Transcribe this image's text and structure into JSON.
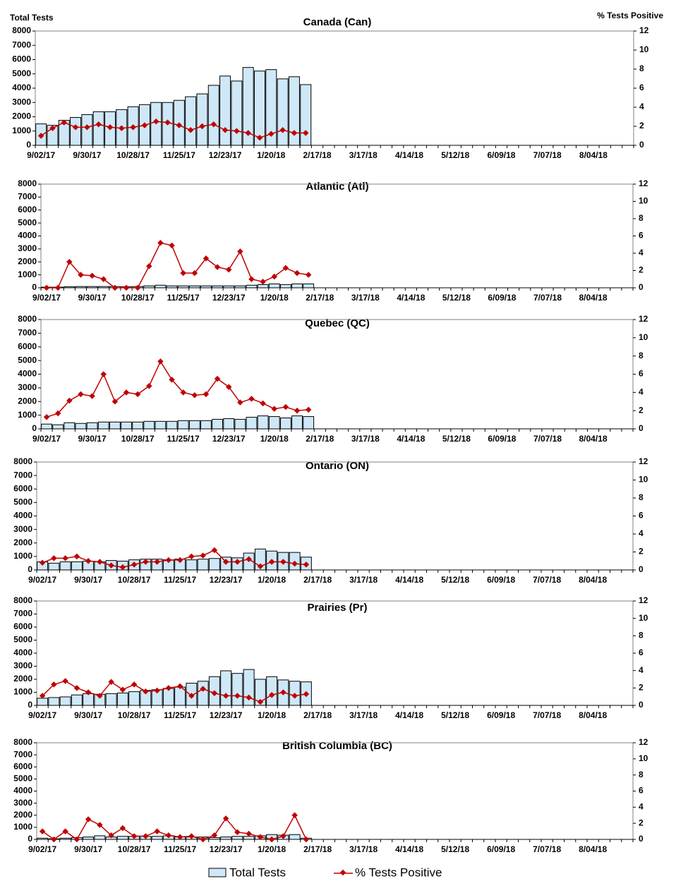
{
  "chart_data": [
    {
      "type": "bar_line",
      "title": "Canada (Can)",
      "y_label": "Total Tests",
      "y2_label": "% Tests Positive",
      "categories": [
        "9/02/17",
        null,
        null,
        null,
        "9/30/17",
        null,
        null,
        null,
        "10/28/17",
        null,
        null,
        null,
        "11/25/17",
        null,
        null,
        null,
        "12/23/17",
        null,
        null,
        null,
        "1/20/18",
        null,
        null,
        null,
        "2/17/18",
        null,
        null,
        null,
        "3/17/18",
        null,
        null,
        null,
        "4/14/18",
        null,
        null,
        null,
        "5/12/18",
        null,
        null,
        null,
        "6/09/18",
        null,
        null,
        null,
        "7/07/18",
        null,
        null,
        null,
        "8/04/18",
        null,
        null,
        null
      ],
      "series": [
        {
          "name": "Total Tests",
          "color": "#cfe8f8",
          "values": [
            1500,
            1400,
            1750,
            1950,
            2150,
            2350,
            2350,
            2500,
            2700,
            2850,
            3000,
            3000,
            3150,
            3400,
            3600,
            4200,
            4850,
            4500,
            5450,
            5200,
            5300,
            4650,
            4800,
            4250,
            null,
            null,
            null,
            null,
            null,
            null,
            null,
            null,
            null,
            null,
            null,
            null,
            null,
            null,
            null,
            null,
            null,
            null,
            null,
            null,
            null,
            null,
            null,
            null,
            null,
            null,
            null,
            null
          ]
        },
        {
          "name": "% Tests Positive",
          "color": "#c00000",
          "axis": "y2",
          "values": [
            1.0,
            1.8,
            2.4,
            1.9,
            1.9,
            2.2,
            1.9,
            1.8,
            1.9,
            2.1,
            2.5,
            2.4,
            2.1,
            1.6,
            2.0,
            2.2,
            1.6,
            1.5,
            1.3,
            0.8,
            1.2,
            1.6,
            1.3,
            1.3,
            null,
            null,
            null,
            null,
            null,
            null,
            null,
            null,
            null,
            null,
            null,
            null,
            null,
            null,
            null,
            null,
            null,
            null,
            null,
            null,
            null,
            null,
            null,
            null,
            null,
            null,
            null,
            null
          ]
        }
      ],
      "ylim": [
        0,
        8000
      ],
      "yticks": [
        0,
        1000,
        2000,
        3000,
        4000,
        5000,
        6000,
        7000,
        8000
      ],
      "y2lim": [
        0,
        12
      ],
      "y2ticks": [
        0,
        2,
        4,
        6,
        8,
        10,
        12
      ]
    },
    {
      "type": "bar_line",
      "title": "Atlantic (Atl)",
      "categories": [
        "9/02/17",
        null,
        null,
        null,
        "9/30/17",
        null,
        null,
        null,
        "10/28/17",
        null,
        null,
        null,
        "11/25/17",
        null,
        null,
        null,
        "12/23/17",
        null,
        null,
        null,
        "1/20/18",
        null,
        null,
        null,
        "2/17/18",
        null,
        null,
        null,
        "3/17/18",
        null,
        null,
        null,
        "4/14/18",
        null,
        null,
        null,
        "5/12/18",
        null,
        null,
        null,
        "6/09/18",
        null,
        null,
        null,
        "7/07/18",
        null,
        null,
        null,
        "8/04/18",
        null,
        null,
        null
      ],
      "series": [
        {
          "color": "#cfe8f8",
          "values": [
            50,
            50,
            80,
            100,
            100,
            100,
            100,
            80,
            100,
            150,
            200,
            150,
            150,
            150,
            150,
            150,
            150,
            150,
            200,
            250,
            300,
            250,
            300,
            300,
            null,
            null,
            null,
            null,
            null,
            null,
            null,
            null,
            null,
            null,
            null,
            null,
            null,
            null,
            null,
            null,
            null,
            null,
            null,
            null,
            null,
            null,
            null,
            null,
            null,
            null,
            null,
            null
          ]
        },
        {
          "color": "#c00000",
          "axis": "y2",
          "values": [
            0,
            0,
            3.0,
            1.5,
            1.4,
            1.0,
            0,
            0,
            0,
            2.5,
            5.2,
            4.9,
            1.7,
            1.7,
            3.4,
            2.4,
            2.1,
            4.2,
            1.0,
            0.7,
            1.3,
            2.3,
            1.7,
            1.5,
            null,
            null,
            null,
            null,
            null,
            null,
            null,
            null,
            null,
            null,
            null,
            null,
            null,
            null,
            null,
            null,
            null,
            null,
            null,
            null,
            null,
            null,
            null,
            null,
            null,
            null,
            null,
            null
          ]
        }
      ],
      "ylim": [
        0,
        8000
      ],
      "yticks": [
        0,
        1000,
        2000,
        3000,
        4000,
        5000,
        6000,
        7000,
        8000
      ],
      "y2lim": [
        0,
        12
      ],
      "y2ticks": [
        0,
        2,
        4,
        6,
        8,
        10,
        12
      ]
    },
    {
      "type": "bar_line",
      "title": "Quebec (QC)",
      "categories": [
        "9/02/17",
        null,
        null,
        null,
        "9/30/17",
        null,
        null,
        null,
        "10/28/17",
        null,
        null,
        null,
        "11/25/17",
        null,
        null,
        null,
        "12/23/17",
        null,
        null,
        null,
        "1/20/18",
        null,
        null,
        null,
        "2/17/18",
        null,
        null,
        null,
        "3/17/18",
        null,
        null,
        null,
        "4/14/18",
        null,
        null,
        null,
        "5/12/18",
        null,
        null,
        null,
        "6/09/18",
        null,
        null,
        null,
        "7/07/18",
        null,
        null,
        null,
        "8/04/18",
        null,
        null,
        null
      ],
      "series": [
        {
          "color": "#cfe8f8",
          "values": [
            350,
            300,
            450,
            400,
            450,
            500,
            500,
            500,
            500,
            550,
            550,
            550,
            600,
            600,
            600,
            700,
            750,
            700,
            850,
            950,
            900,
            800,
            950,
            900,
            null,
            null,
            null,
            null,
            null,
            null,
            null,
            null,
            null,
            null,
            null,
            null,
            null,
            null,
            null,
            null,
            null,
            null,
            null,
            null,
            null,
            null,
            null,
            null,
            null,
            null,
            null,
            null
          ]
        },
        {
          "color": "#c00000",
          "axis": "y2",
          "values": [
            1.3,
            1.7,
            3.1,
            3.8,
            3.6,
            6.0,
            3.0,
            4.0,
            3.8,
            4.7,
            7.4,
            5.4,
            4.0,
            3.7,
            3.8,
            5.5,
            4.6,
            2.9,
            3.3,
            2.8,
            2.2,
            2.4,
            2.0,
            2.1,
            null,
            null,
            null,
            null,
            null,
            null,
            null,
            null,
            null,
            null,
            null,
            null,
            null,
            null,
            null,
            null,
            null,
            null,
            null,
            null,
            null,
            null,
            null,
            null,
            null,
            null,
            null,
            null
          ]
        }
      ],
      "ylim": [
        0,
        8000
      ],
      "yticks": [
        0,
        1000,
        2000,
        3000,
        4000,
        5000,
        6000,
        7000,
        8000
      ],
      "y2lim": [
        0,
        12
      ],
      "y2ticks": [
        0,
        2,
        4,
        6,
        8,
        10,
        12
      ]
    },
    {
      "type": "bar_line",
      "title": "Ontario (ON)",
      "categories": [
        "9/02/17",
        null,
        null,
        null,
        "9/30/17",
        null,
        null,
        null,
        "10/28/17",
        null,
        null,
        null,
        "11/25/17",
        null,
        null,
        null,
        "12/23/17",
        null,
        null,
        null,
        "1/20/18",
        null,
        null,
        null,
        "2/17/18",
        null,
        null,
        null,
        "3/17/18",
        null,
        null,
        null,
        "4/14/18",
        null,
        null,
        null,
        "5/12/18",
        null,
        null,
        null,
        "6/09/18",
        null,
        null,
        null,
        "7/07/18",
        null,
        null,
        null,
        "8/04/18",
        null,
        null,
        null
      ],
      "series": [
        {
          "color": "#cfe8f8",
          "values": [
            600,
            500,
            600,
            600,
            650,
            600,
            700,
            650,
            750,
            800,
            800,
            750,
            800,
            750,
            800,
            850,
            950,
            900,
            1250,
            1550,
            1400,
            1300,
            1300,
            950,
            null,
            null,
            null,
            null,
            null,
            null,
            null,
            null,
            null,
            null,
            null,
            null,
            null,
            null,
            null,
            null,
            null,
            null,
            null,
            null,
            null,
            null,
            null,
            null,
            null,
            null,
            null,
            null
          ]
        },
        {
          "color": "#c00000",
          "axis": "y2",
          "values": [
            0.8,
            1.3,
            1.3,
            1.5,
            1.0,
            0.9,
            0.5,
            0.3,
            0.6,
            0.9,
            0.9,
            1.1,
            1.1,
            1.5,
            1.6,
            2.2,
            0.9,
            0.9,
            1.2,
            0.4,
            0.9,
            0.9,
            0.7,
            0.6,
            null,
            null,
            null,
            null,
            null,
            null,
            null,
            null,
            null,
            null,
            null,
            null,
            null,
            null,
            null,
            null,
            null,
            null,
            null,
            null,
            null,
            null,
            null,
            null,
            null,
            null,
            null,
            null
          ]
        }
      ],
      "ylim": [
        0,
        8000
      ],
      "yticks": [
        0,
        1000,
        2000,
        3000,
        4000,
        5000,
        6000,
        7000,
        8000
      ],
      "y2lim": [
        0,
        12
      ],
      "y2ticks": [
        0,
        2,
        4,
        6,
        8,
        10,
        12
      ]
    },
    {
      "type": "bar_line",
      "title": "Prairies (Pr)",
      "categories": [
        "9/02/17",
        null,
        null,
        null,
        "9/30/17",
        null,
        null,
        null,
        "10/28/17",
        null,
        null,
        null,
        "11/25/17",
        null,
        null,
        null,
        "12/23/17",
        null,
        null,
        null,
        "1/20/18",
        null,
        null,
        null,
        "2/17/18",
        null,
        null,
        null,
        "3/17/18",
        null,
        null,
        null,
        "4/14/18",
        null,
        null,
        null,
        "5/12/18",
        null,
        null,
        null,
        "6/09/18",
        null,
        null,
        null,
        "7/07/18",
        null,
        null,
        null,
        "8/04/18",
        null,
        null,
        null
      ],
      "series": [
        {
          "color": "#cfe8f8",
          "values": [
            550,
            600,
            650,
            800,
            900,
            850,
            900,
            950,
            1050,
            1150,
            1200,
            1300,
            1400,
            1700,
            1850,
            2200,
            2650,
            2450,
            2750,
            2000,
            2200,
            1950,
            1850,
            1800,
            null,
            null,
            null,
            null,
            null,
            null,
            null,
            null,
            null,
            null,
            null,
            null,
            null,
            null,
            null,
            null,
            null,
            null,
            null,
            null,
            null,
            null,
            null,
            null,
            null,
            null,
            null,
            null
          ]
        },
        {
          "color": "#c00000",
          "axis": "y2",
          "values": [
            1.1,
            2.4,
            2.8,
            2.0,
            1.5,
            1.1,
            2.7,
            1.8,
            2.4,
            1.6,
            1.7,
            2.0,
            2.2,
            1.1,
            1.9,
            1.4,
            1.1,
            1.1,
            0.9,
            0.4,
            1.2,
            1.5,
            1.1,
            1.3,
            null,
            null,
            null,
            null,
            null,
            null,
            null,
            null,
            null,
            null,
            null,
            null,
            null,
            null,
            null,
            null,
            null,
            null,
            null,
            null,
            null,
            null,
            null,
            null,
            null,
            null,
            null,
            null
          ]
        }
      ],
      "ylim": [
        0,
        8000
      ],
      "yticks": [
        0,
        1000,
        2000,
        3000,
        4000,
        5000,
        6000,
        7000,
        8000
      ],
      "y2lim": [
        0,
        12
      ],
      "y2ticks": [
        0,
        2,
        4,
        6,
        8,
        10,
        12
      ]
    },
    {
      "type": "bar_line",
      "title": "British Columbia (BC)",
      "categories": [
        "9/02/17",
        null,
        null,
        null,
        "9/30/17",
        null,
        null,
        null,
        "10/28/17",
        null,
        null,
        null,
        "11/25/17",
        null,
        null,
        null,
        "12/23/17",
        null,
        null,
        null,
        "1/20/18",
        null,
        null,
        null,
        "2/17/18",
        null,
        null,
        null,
        "3/17/18",
        null,
        null,
        null,
        "4/14/18",
        null,
        null,
        null,
        "5/12/18",
        null,
        null,
        null,
        "6/09/18",
        null,
        null,
        null,
        "7/07/18",
        null,
        null,
        null,
        "8/04/18",
        null,
        null,
        null
      ],
      "series": [
        {
          "color": "#cfe8f8",
          "values": [
            100,
            50,
            100,
            150,
            200,
            300,
            200,
            250,
            250,
            250,
            250,
            300,
            200,
            200,
            200,
            150,
            200,
            250,
            250,
            300,
            400,
            350,
            400,
            100,
            null,
            null,
            null,
            null,
            null,
            null,
            null,
            null,
            null,
            null,
            null,
            null,
            null,
            null,
            null,
            null,
            null,
            null,
            null,
            null,
            null,
            null,
            null,
            null,
            null,
            null,
            null,
            null
          ]
        },
        {
          "color": "#c00000",
          "axis": "y2",
          "values": [
            1.0,
            0,
            1.0,
            0,
            2.5,
            1.8,
            0.5,
            1.4,
            0.4,
            0.4,
            1.0,
            0.5,
            0.3,
            0.4,
            0,
            0.5,
            2.6,
            0.9,
            0.7,
            0.3,
            0,
            0.4,
            3.0,
            0,
            null,
            null,
            null,
            null,
            null,
            null,
            null,
            null,
            null,
            null,
            null,
            null,
            null,
            null,
            null,
            null,
            null,
            null,
            null,
            null,
            null,
            null,
            null,
            null,
            null,
            null,
            null,
            null
          ]
        }
      ],
      "ylim": [
        0,
        8000
      ],
      "yticks": [
        0,
        1000,
        2000,
        3000,
        4000,
        5000,
        6000,
        7000,
        8000
      ],
      "y2lim": [
        0,
        12
      ],
      "y2ticks": [
        0,
        2,
        4,
        6,
        8,
        10,
        12
      ]
    }
  ]
}
